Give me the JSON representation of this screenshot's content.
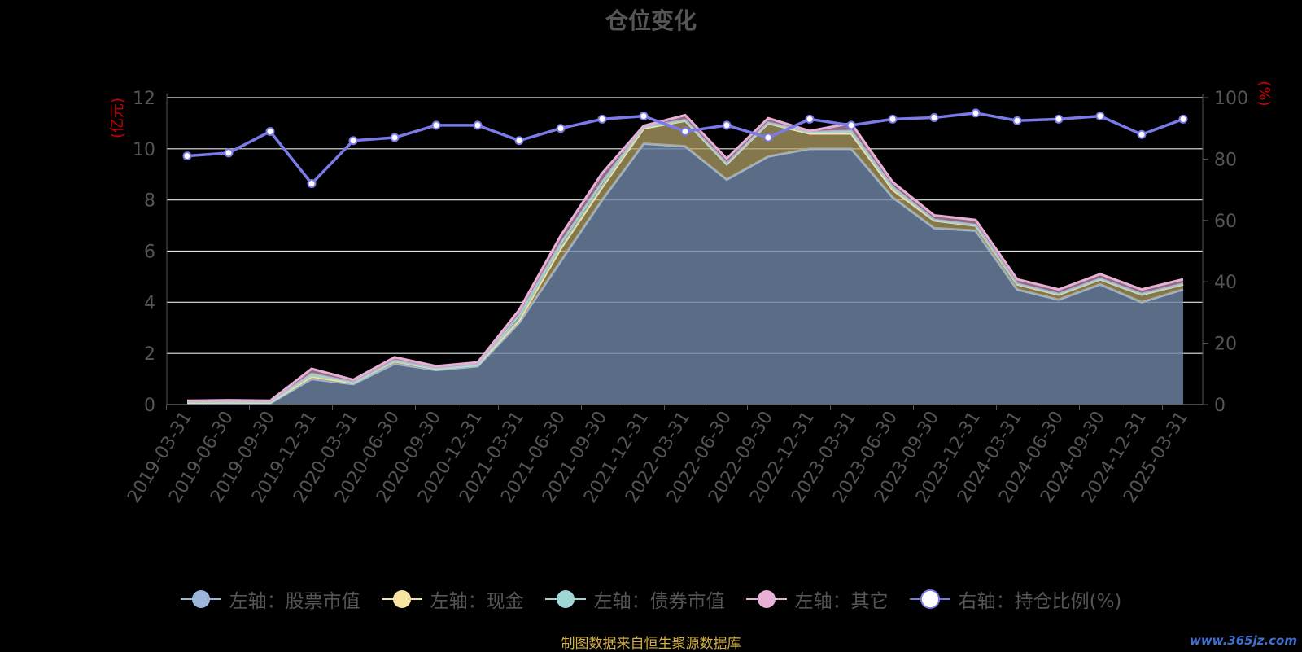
{
  "title": "仓位变化",
  "source_note": "制图数据来自恒生聚源数据库",
  "watermark": "www.365jz.com",
  "colors": {
    "background": "#000000",
    "grid": "#e6e6e6",
    "axis_text": "#555555",
    "axis_unit": "#cc0000",
    "stock": "#9bb5db",
    "cash": "#f7e3a3",
    "bond": "#9fd6d6",
    "other": "#e8b0d6",
    "ratio": "#7a7ae8"
  },
  "chart_data": {
    "type": "area",
    "stacked": true,
    "categories": [
      "2019-03-31",
      "2019-06-30",
      "2019-09-30",
      "2019-12-31",
      "2020-03-31",
      "2020-06-30",
      "2020-09-30",
      "2020-12-31",
      "2021-03-31",
      "2021-06-30",
      "2021-09-30",
      "2021-12-31",
      "2022-03-31",
      "2022-06-30",
      "2022-09-30",
      "2022-12-31",
      "2023-03-31",
      "2023-06-30",
      "2023-09-30",
      "2023-12-31",
      "2024-03-31",
      "2024-06-30",
      "2024-09-30",
      "2024-12-31",
      "2025-03-31"
    ],
    "left_axis": {
      "unit": "(亿元)",
      "min": 0,
      "max": 12,
      "ticks": [
        "0",
        "2",
        "4",
        "6",
        "8",
        "10",
        "12"
      ]
    },
    "right_axis": {
      "unit": "(%)",
      "min": 0,
      "max": 100,
      "ticks": [
        "0",
        "20",
        "40",
        "60",
        "80",
        "100"
      ]
    },
    "grid": true,
    "legend_position": "bottom",
    "series": [
      {
        "name": "左轴：股票市值",
        "axis": "left",
        "type": "area",
        "values": [
          0.05,
          0.06,
          0.05,
          1.0,
          0.8,
          1.6,
          1.35,
          1.5,
          3.2,
          5.6,
          8.0,
          10.2,
          10.1,
          8.8,
          9.7,
          10.0,
          10.0,
          8.1,
          6.9,
          6.8,
          4.5,
          4.1,
          4.7,
          4.0,
          4.5
        ]
      },
      {
        "name": "左轴：现金",
        "axis": "left",
        "type": "area",
        "values": [
          0.03,
          0.03,
          0.03,
          0.1,
          0.05,
          0.1,
          0.05,
          0.05,
          0.1,
          0.5,
          0.5,
          0.6,
          1.0,
          0.6,
          1.3,
          0.6,
          0.6,
          0.3,
          0.3,
          0.2,
          0.2,
          0.2,
          0.2,
          0.3,
          0.2
        ]
      },
      {
        "name": "左轴：债券市值",
        "axis": "left",
        "type": "area",
        "values": [
          0.02,
          0.03,
          0.02,
          0.1,
          0.02,
          0.02,
          0.02,
          0.02,
          0.2,
          0.2,
          0.2,
          0.05,
          0.02,
          0.02,
          0.02,
          0.05,
          0.1,
          0.1,
          0.02,
          0.02,
          0.02,
          0.02,
          0.02,
          0.02,
          0.02
        ]
      },
      {
        "name": "左轴：其它",
        "axis": "left",
        "type": "area",
        "values": [
          0.05,
          0.05,
          0.05,
          0.2,
          0.1,
          0.13,
          0.08,
          0.08,
          0.2,
          0.3,
          0.35,
          0.05,
          0.2,
          0.2,
          0.18,
          0.05,
          0.3,
          0.2,
          0.18,
          0.2,
          0.18,
          0.18,
          0.18,
          0.18,
          0.18
        ]
      },
      {
        "name": "右轴：持仓比例(%)",
        "axis": "right",
        "type": "line",
        "values": [
          81,
          82,
          89,
          72,
          86,
          87,
          91,
          91,
          86,
          90,
          93,
          94,
          89,
          91,
          87,
          93,
          91,
          93,
          93.5,
          95,
          92.5,
          93,
          94,
          88,
          93
        ]
      }
    ]
  }
}
